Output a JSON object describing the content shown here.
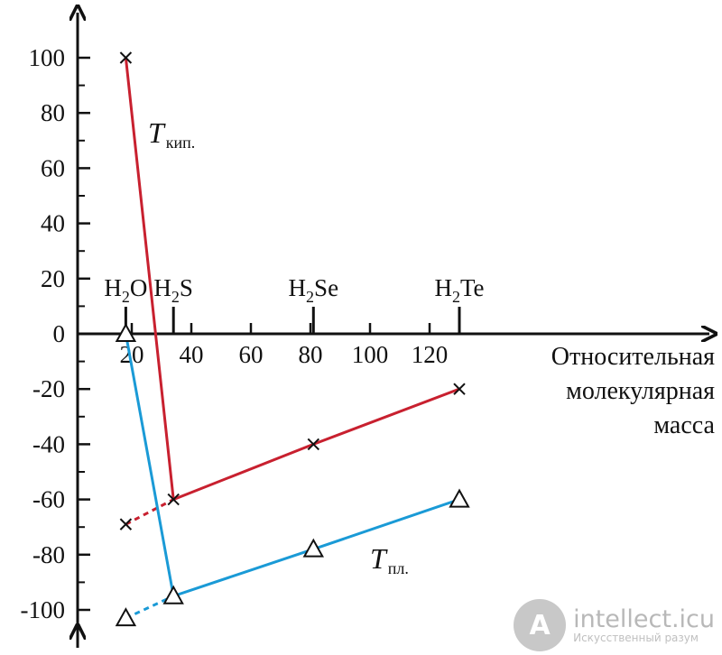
{
  "chart_data": {
    "type": "line",
    "title": "",
    "xlabel": [
      "Относительная",
      "молекулярная",
      "масса"
    ],
    "ylabel": "",
    "xlim": [
      0,
      135
    ],
    "ylim": [
      -100,
      100
    ],
    "x_ticks": [
      {
        "value": 20,
        "label": "20"
      },
      {
        "value": 40,
        "label": "40"
      },
      {
        "value": 60,
        "label": "60"
      },
      {
        "value": 80,
        "label": "80"
      },
      {
        "value": 100,
        "label": "100"
      },
      {
        "value": 120,
        "label": "120"
      }
    ],
    "y_ticks": [
      {
        "value": 100,
        "label": "100"
      },
      {
        "value": 80,
        "label": "80"
      },
      {
        "value": 60,
        "label": "60"
      },
      {
        "value": 40,
        "label": "40"
      },
      {
        "value": 20,
        "label": "20"
      },
      {
        "value": 0,
        "label": "0"
      },
      {
        "value": -20,
        "label": "-20"
      },
      {
        "value": -40,
        "label": "-40"
      },
      {
        "value": -60,
        "label": "-60"
      },
      {
        "value": -80,
        "label": "-80"
      },
      {
        "value": -100,
        "label": "-100"
      }
    ],
    "compounds": [
      {
        "x": 18,
        "base": "H",
        "sub": "2",
        "rest": "O"
      },
      {
        "x": 34,
        "base": "H",
        "sub": "2",
        "rest": "S"
      },
      {
        "x": 81,
        "base": "H",
        "sub": "2",
        "rest": "Se"
      },
      {
        "x": 130,
        "base": "H",
        "sub": "2",
        "rest": "Te"
      }
    ],
    "series": [
      {
        "label_main": "T",
        "label_sub": "кип.",
        "color": "#c8202f",
        "marker": "x",
        "points": [
          {
            "x": 18,
            "y": 100
          },
          {
            "x": 34,
            "y": -60
          },
          {
            "x": 81,
            "y": -40
          },
          {
            "x": 130,
            "y": -20
          }
        ],
        "extrapolated": {
          "x": 18,
          "y": -69
        }
      },
      {
        "label_main": "T",
        "label_sub": "пл.",
        "color": "#1a9ad6",
        "marker": "triangle",
        "points": [
          {
            "x": 18,
            "y": 0
          },
          {
            "x": 34,
            "y": -95
          },
          {
            "x": 81,
            "y": -78
          },
          {
            "x": 130,
            "y": -60
          }
        ],
        "extrapolated": {
          "x": 18,
          "y": -103
        }
      }
    ]
  },
  "watermark": {
    "logo": "A",
    "text": "intellect.icu",
    "subtext": "Искусственный разум"
  }
}
